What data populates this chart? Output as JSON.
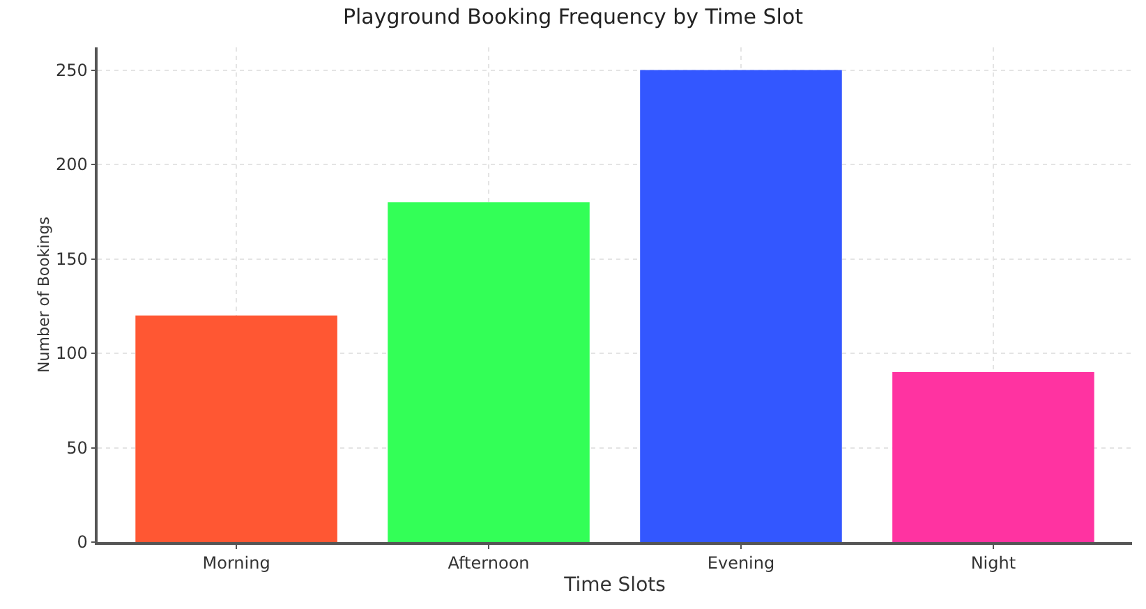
{
  "chart_data": {
    "type": "bar",
    "title": "Playground Booking Frequency by Time Slot",
    "xlabel": "Time Slots",
    "ylabel": "Number of Bookings",
    "categories": [
      "Morning",
      "Afternoon",
      "Evening",
      "Night"
    ],
    "values": [
      120,
      180,
      250,
      90
    ],
    "colors": [
      "#ff5733",
      "#33ff57",
      "#3357ff",
      "#ff33a1"
    ],
    "ylim": [
      0,
      262
    ],
    "yticks": [
      0,
      50,
      100,
      150,
      200,
      250
    ],
    "grid": true
  }
}
